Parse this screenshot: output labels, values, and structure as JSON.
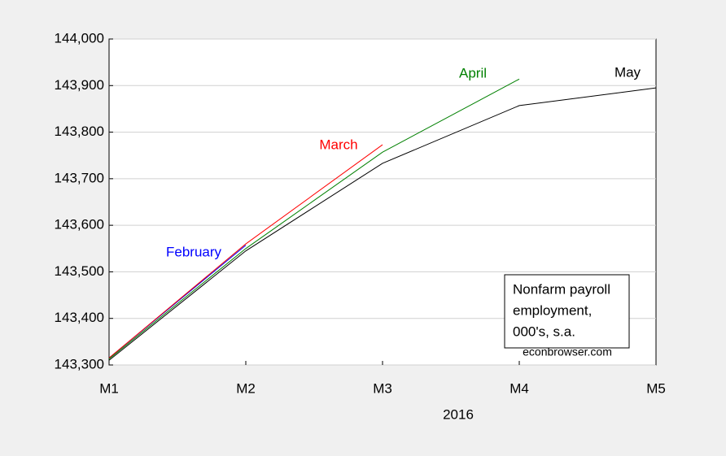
{
  "chart_data": {
    "type": "line",
    "categories": [
      "M1",
      "M2",
      "M3",
      "M4",
      "M5"
    ],
    "xlabel": "2016",
    "series": [
      {
        "name": "February",
        "color": "#0000ff",
        "values": [
          143315,
          143557,
          null,
          null,
          null
        ]
      },
      {
        "name": "March",
        "color": "#ff0000",
        "values": [
          143315,
          143560,
          143773,
          null,
          null
        ]
      },
      {
        "name": "April",
        "color": "#008000",
        "values": [
          143313,
          143550,
          143757,
          143914,
          null
        ]
      },
      {
        "name": "May",
        "color": "#000000",
        "values": [
          143310,
          143545,
          143733,
          143857,
          143895
        ]
      }
    ],
    "ylim": [
      143300,
      144000
    ],
    "yticks": [
      {
        "value": 143300,
        "label": "143,300"
      },
      {
        "value": 143400,
        "label": "143,400"
      },
      {
        "value": 143500,
        "label": "143,500"
      },
      {
        "value": 143600,
        "label": "143,600"
      },
      {
        "value": 143700,
        "label": "143,700"
      },
      {
        "value": 143800,
        "label": "143,800"
      },
      {
        "value": 143900,
        "label": "143,900"
      },
      {
        "value": 144000,
        "label": "144,000"
      }
    ],
    "grid": true,
    "annotation": [
      "Nonfarm payroll",
      "employment,",
      "000's, s.a."
    ],
    "source": "econbrowser.com"
  }
}
